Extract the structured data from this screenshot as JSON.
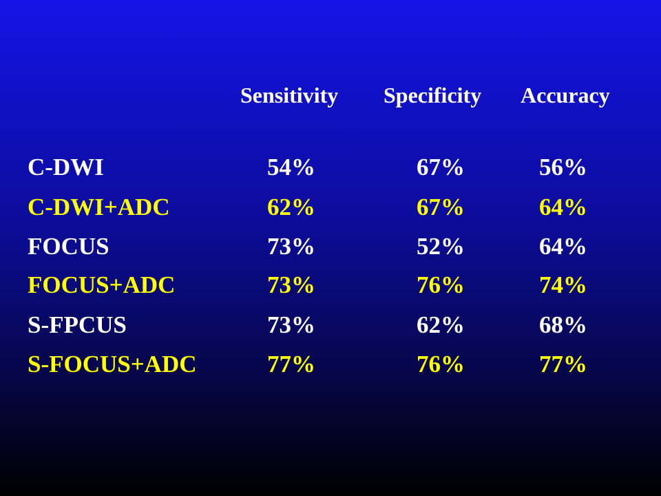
{
  "colors": {
    "white": "#ffffff",
    "yellow": "#ffff00"
  },
  "table": {
    "headers": [
      "Sensitivity",
      "Specificity",
      "Accuracy"
    ],
    "rows": [
      {
        "label": "C-DWI",
        "sensitivity": "54%",
        "specificity": "67%",
        "accuracy": "56%",
        "color": "#ffffff"
      },
      {
        "label": "C-DWI+ADC",
        "sensitivity": "62%",
        "specificity": "67%",
        "accuracy": "64%",
        "color": "#ffff00"
      },
      {
        "label": "FOCUS",
        "sensitivity": "73%",
        "specificity": "52%",
        "accuracy": "64%",
        "color": "#ffffff"
      },
      {
        "label": "FOCUS+ADC",
        "sensitivity": "73%",
        "specificity": "76%",
        "accuracy": "74%",
        "color": "#ffff00"
      },
      {
        "label": "S-FPCUS",
        "sensitivity": "73%",
        "specificity": "62%",
        "accuracy": "68%",
        "color": "#ffffff"
      },
      {
        "label": "S-FOCUS+ADC",
        "sensitivity": "77%",
        "specificity": "76%",
        "accuracy": "77%",
        "color": "#ffff00"
      }
    ]
  }
}
